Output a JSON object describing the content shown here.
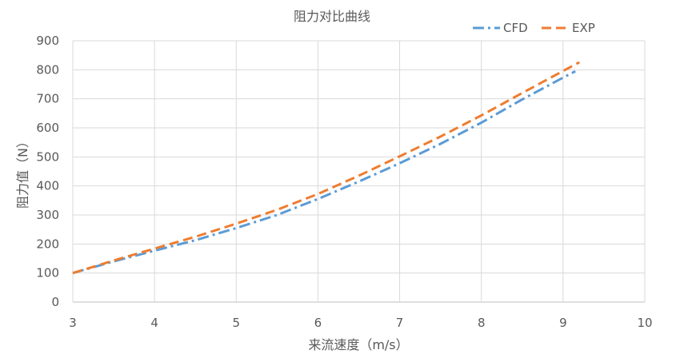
{
  "chart_data": {
    "type": "line",
    "title": "阻力对比曲线",
    "xlabel": "来流速度（m/s）",
    "ylabel": "阻力值（N）",
    "xlim": [
      3,
      10
    ],
    "ylim": [
      0,
      900
    ],
    "xticks": [
      "3",
      "4",
      "5",
      "6",
      "7",
      "8",
      "9",
      "10"
    ],
    "yticks": [
      "0",
      "100",
      "200",
      "300",
      "400",
      "500",
      "600",
      "700",
      "800",
      "900"
    ],
    "grid": true,
    "legend_position": "top-right",
    "series": [
      {
        "name": "CFD",
        "color": "#5b9bd5",
        "dash": "dash-dot",
        "x": [
          3.0,
          3.5,
          4.0,
          4.5,
          5.0,
          5.5,
          6.0,
          6.5,
          7.0,
          7.5,
          8.0,
          8.5,
          9.0,
          9.15
        ],
        "y": [
          100,
          140,
          177,
          213,
          255,
          300,
          355,
          415,
          478,
          545,
          618,
          698,
          773,
          795
        ]
      },
      {
        "name": "EXP",
        "color": "#ed7d31",
        "dash": "dash",
        "x": [
          3.0,
          3.5,
          4.0,
          4.5,
          5.0,
          5.5,
          6.0,
          6.5,
          7.0,
          7.5,
          8.0,
          8.5,
          9.0,
          9.2
        ],
        "y": [
          100,
          143,
          184,
          225,
          270,
          318,
          372,
          435,
          502,
          570,
          643,
          720,
          796,
          826
        ]
      }
    ]
  }
}
